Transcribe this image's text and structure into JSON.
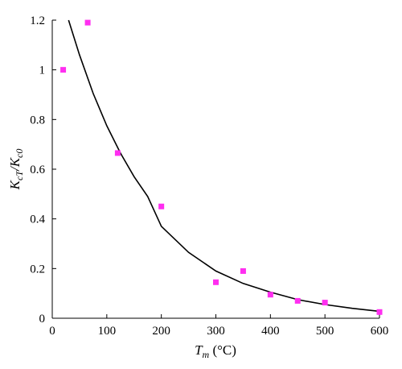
{
  "chart_data": {
    "type": "scatter",
    "xlabel": "T_m (°C)",
    "ylabel": "K_cT / K_c0",
    "xlim": [
      0,
      600
    ],
    "ylim": [
      0,
      1.2
    ],
    "x_ticks": [
      "0",
      "100",
      "200",
      "300",
      "400",
      "500",
      "600"
    ],
    "y_ticks": [
      "0",
      "0.2",
      "0.4",
      "0.6",
      "0.8",
      "1",
      "1.2"
    ],
    "grid": false,
    "series": [
      {
        "kind": "points",
        "marker": "square",
        "color": "#ff2ef0",
        "points": [
          [
            20,
            1.0
          ],
          [
            65,
            1.19
          ],
          [
            120,
            0.665
          ],
          [
            200,
            0.45
          ],
          [
            300,
            0.145
          ],
          [
            350,
            0.19
          ],
          [
            400,
            0.095
          ],
          [
            450,
            0.07
          ],
          [
            500,
            0.063
          ],
          [
            600,
            0.025
          ]
        ]
      },
      {
        "kind": "curve",
        "color": "#000000",
        "points": [
          [
            30,
            1.2
          ],
          [
            50,
            1.06
          ],
          [
            75,
            0.905
          ],
          [
            100,
            0.775
          ],
          [
            125,
            0.665
          ],
          [
            150,
            0.57
          ],
          [
            175,
            0.49
          ],
          [
            200,
            0.37
          ],
          [
            250,
            0.265
          ],
          [
            300,
            0.19
          ],
          [
            350,
            0.14
          ],
          [
            400,
            0.105
          ],
          [
            450,
            0.075
          ],
          [
            500,
            0.055
          ],
          [
            550,
            0.04
          ],
          [
            600,
            0.028
          ]
        ]
      }
    ]
  }
}
